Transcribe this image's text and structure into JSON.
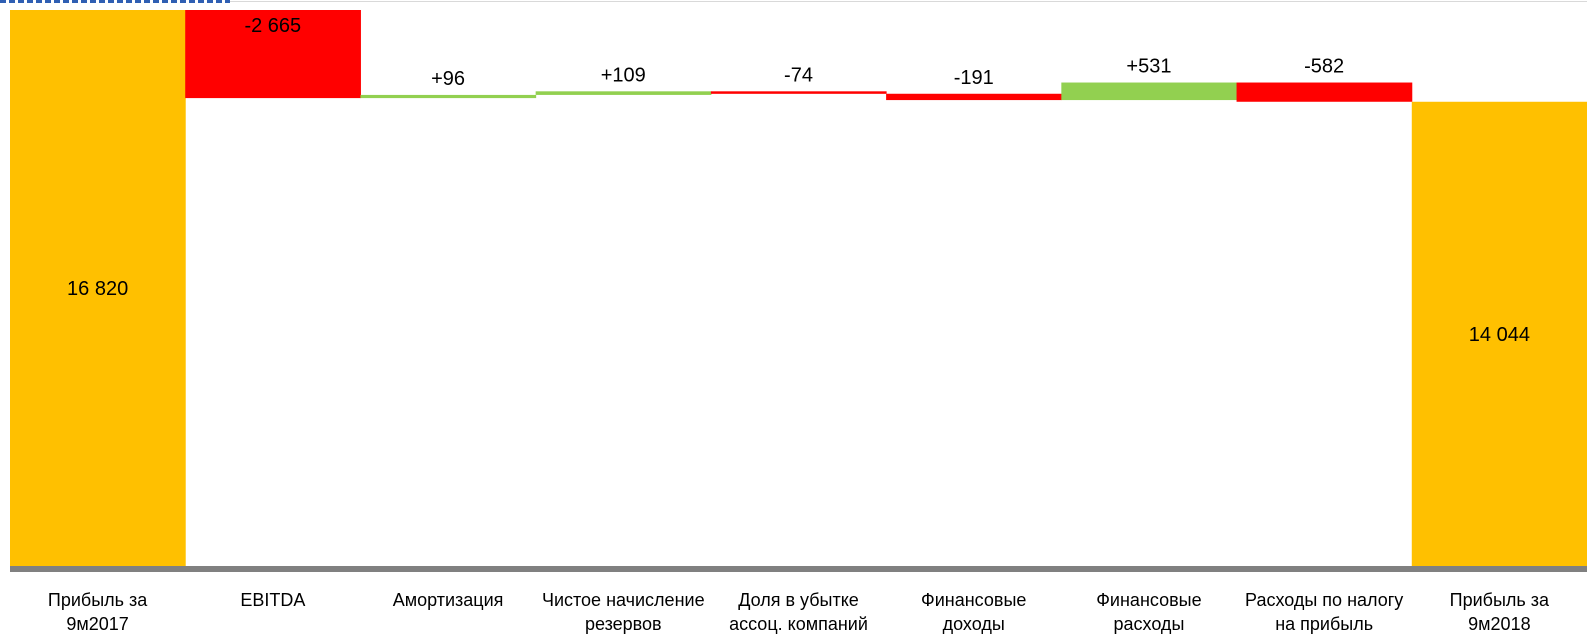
{
  "chart_data": {
    "type": "waterfall",
    "categories": [
      [
        "Прибыль за",
        "9м2017"
      ],
      [
        "EBITDA"
      ],
      [
        "Амортизация"
      ],
      [
        "Чистое начисление",
        "резервов"
      ],
      [
        "Доля в убытке",
        "ассоц. компаний"
      ],
      [
        "Финансовые",
        "доходы"
      ],
      [
        "Финансовые",
        "расходы"
      ],
      [
        "Расходы по налогу",
        "на прибыль"
      ],
      [
        "Прибыль за",
        "9м2018"
      ]
    ],
    "bars": [
      {
        "kind": "total",
        "value": 16820,
        "label": "16 820"
      },
      {
        "kind": "delta",
        "value": -2665,
        "label": "-2 665"
      },
      {
        "kind": "delta",
        "value": 96,
        "label": "+96"
      },
      {
        "kind": "delta",
        "value": 109,
        "label": "+109"
      },
      {
        "kind": "delta",
        "value": -74,
        "label": "-74"
      },
      {
        "kind": "delta",
        "value": -191,
        "label": "-191"
      },
      {
        "kind": "delta",
        "value": 531,
        "label": "+531"
      },
      {
        "kind": "delta",
        "value": -582,
        "label": "-582"
      },
      {
        "kind": "total",
        "value": 14044,
        "label": "14 044"
      }
    ],
    "colors": {
      "total": "#FFC000",
      "increase": "#92D050",
      "decrease": "#FF0000",
      "baseline": "#808080"
    },
    "ylim": [
      0,
      16820
    ]
  }
}
